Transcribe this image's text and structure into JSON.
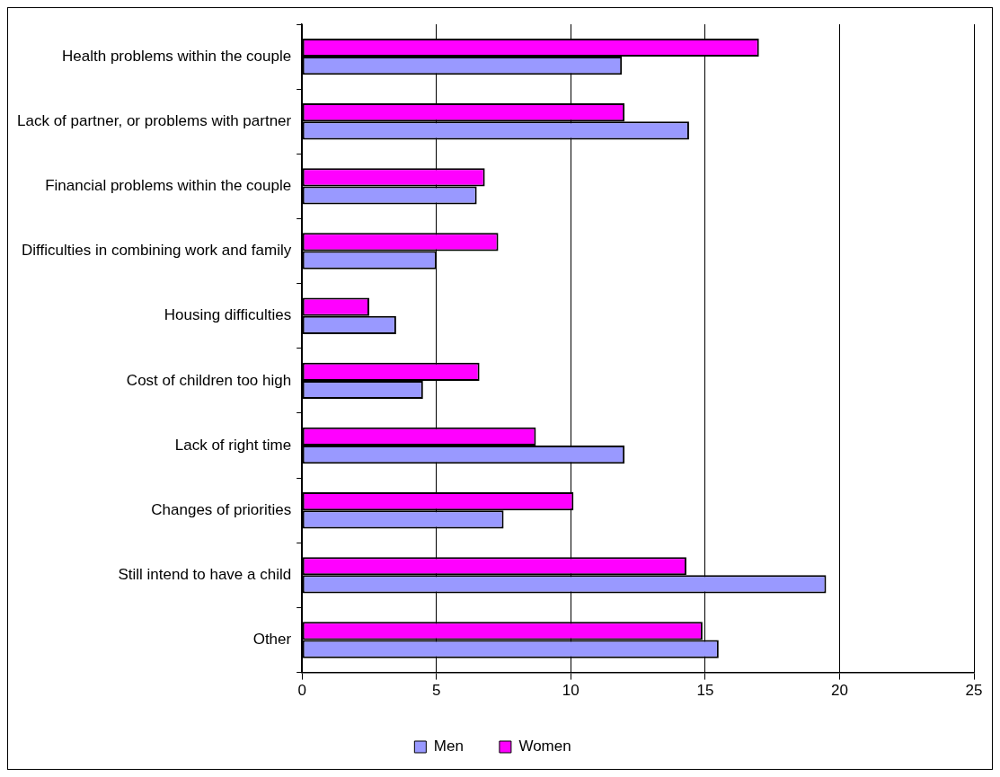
{
  "chart_data": {
    "type": "bar",
    "orientation": "horizontal",
    "categories": [
      "Health problems within the couple",
      "Lack of partner, or problems with partner",
      "Financial problems within the couple",
      "Difficulties in combining work and family",
      "Housing difficulties",
      "Cost of children too high",
      "Lack of right time",
      "Changes of priorities",
      "Still intend to have a child",
      "Other"
    ],
    "series": [
      {
        "name": "Men",
        "color": "#9999ff",
        "values": [
          11.9,
          14.4,
          6.5,
          5.0,
          3.5,
          4.5,
          12.0,
          7.5,
          19.5,
          15.5
        ]
      },
      {
        "name": "Women",
        "color": "#ff00ff",
        "values": [
          17.0,
          12.0,
          6.8,
          7.3,
          2.5,
          6.6,
          8.7,
          10.1,
          14.3,
          14.9
        ]
      }
    ],
    "xlim": [
      0,
      25
    ],
    "xticks": [
      0,
      5,
      10,
      15,
      20,
      25
    ],
    "grid": "x",
    "legend": "bottom"
  }
}
